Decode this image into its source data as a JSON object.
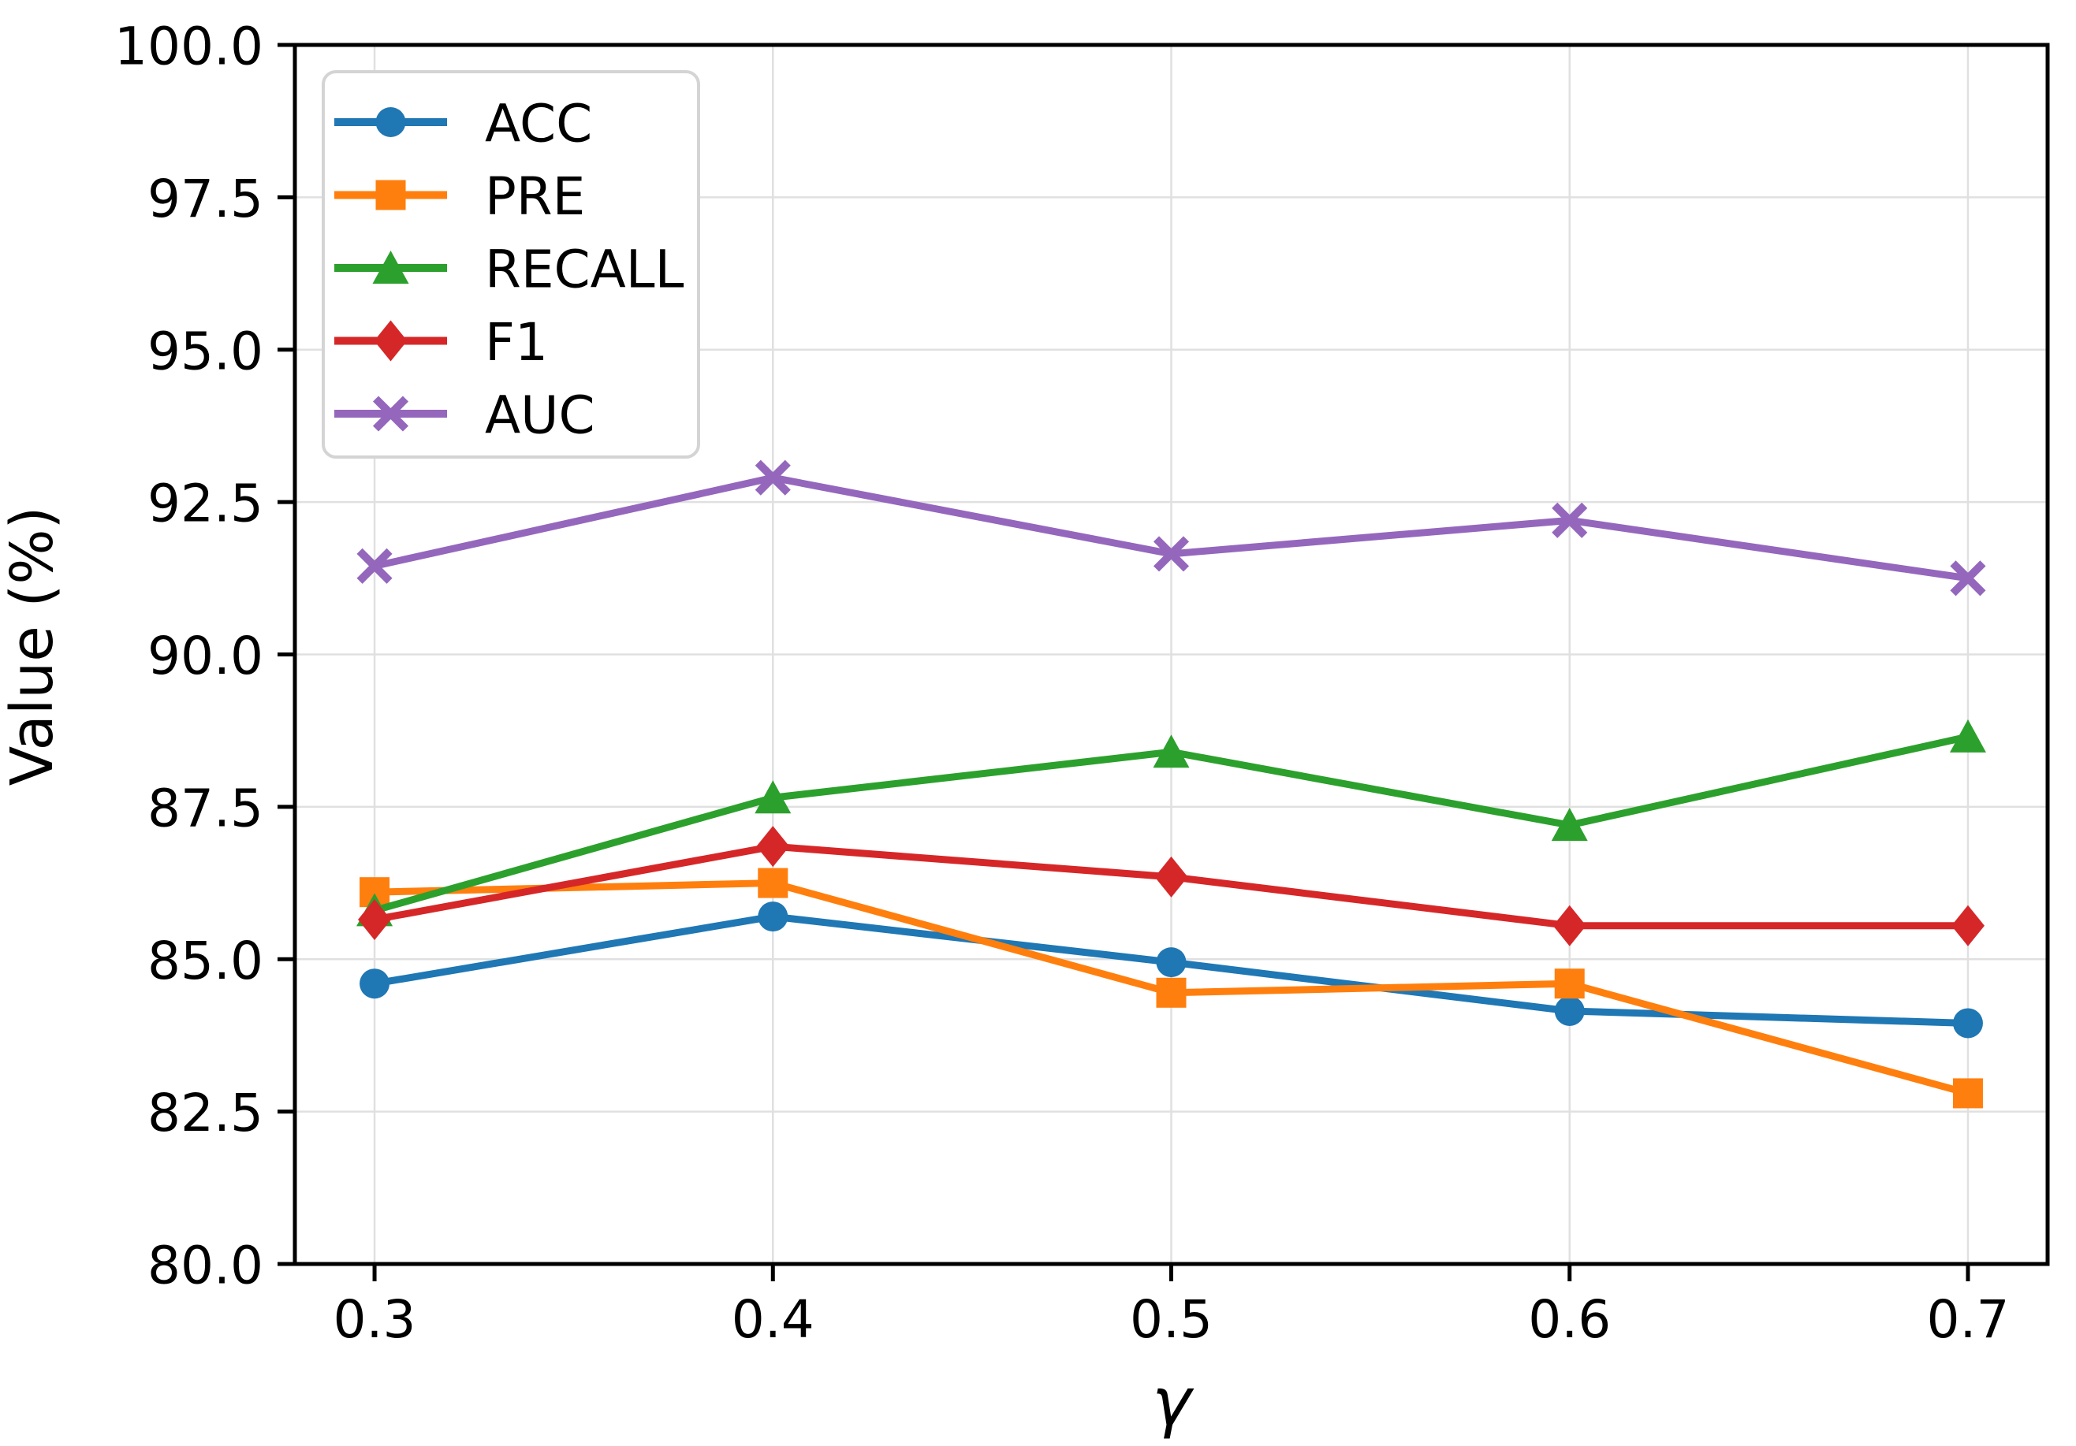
{
  "chart_data": {
    "type": "line",
    "title": "",
    "xlabel": "γ",
    "ylabel": "Value (%)",
    "x": [
      0.3,
      0.4,
      0.5,
      0.6,
      0.7
    ],
    "xtick_labels": [
      "0.3",
      "0.4",
      "0.5",
      "0.6",
      "0.7"
    ],
    "yticks": [
      80.0,
      82.5,
      85.0,
      87.5,
      90.0,
      92.5,
      95.0,
      97.5,
      100.0
    ],
    "ytick_labels": [
      "80.0",
      "82.5",
      "85.0",
      "87.5",
      "90.0",
      "92.5",
      "95.0",
      "97.5",
      "100.0"
    ],
    "xlim": [
      0.28,
      0.72
    ],
    "ylim": [
      80.0,
      100.0
    ],
    "grid": true,
    "legend_position": "upper left",
    "series": [
      {
        "name": "ACC",
        "color": "#1f77b4",
        "marker": "circle",
        "values": [
          84.6,
          85.7,
          84.95,
          84.15,
          83.95
        ]
      },
      {
        "name": "PRE",
        "color": "#ff7f0e",
        "marker": "square",
        "values": [
          86.1,
          86.25,
          84.45,
          84.6,
          82.8
        ]
      },
      {
        "name": "RECALL",
        "color": "#2ca02c",
        "marker": "triangle-up",
        "values": [
          85.8,
          87.65,
          88.4,
          87.2,
          88.65
        ]
      },
      {
        "name": "F1",
        "color": "#d62728",
        "marker": "diamond",
        "values": [
          85.65,
          86.85,
          86.35,
          85.55,
          85.55
        ]
      },
      {
        "name": "AUC",
        "color": "#9467bd",
        "marker": "x",
        "values": [
          91.45,
          92.9,
          91.65,
          92.2,
          91.25
        ]
      }
    ],
    "colors": {
      "background": "#ffffff",
      "grid": "#e0e0e0",
      "spine": "#000000",
      "tick": "#000000",
      "legend_border": "#d4d4d4",
      "legend_background": "#ffffff"
    }
  }
}
